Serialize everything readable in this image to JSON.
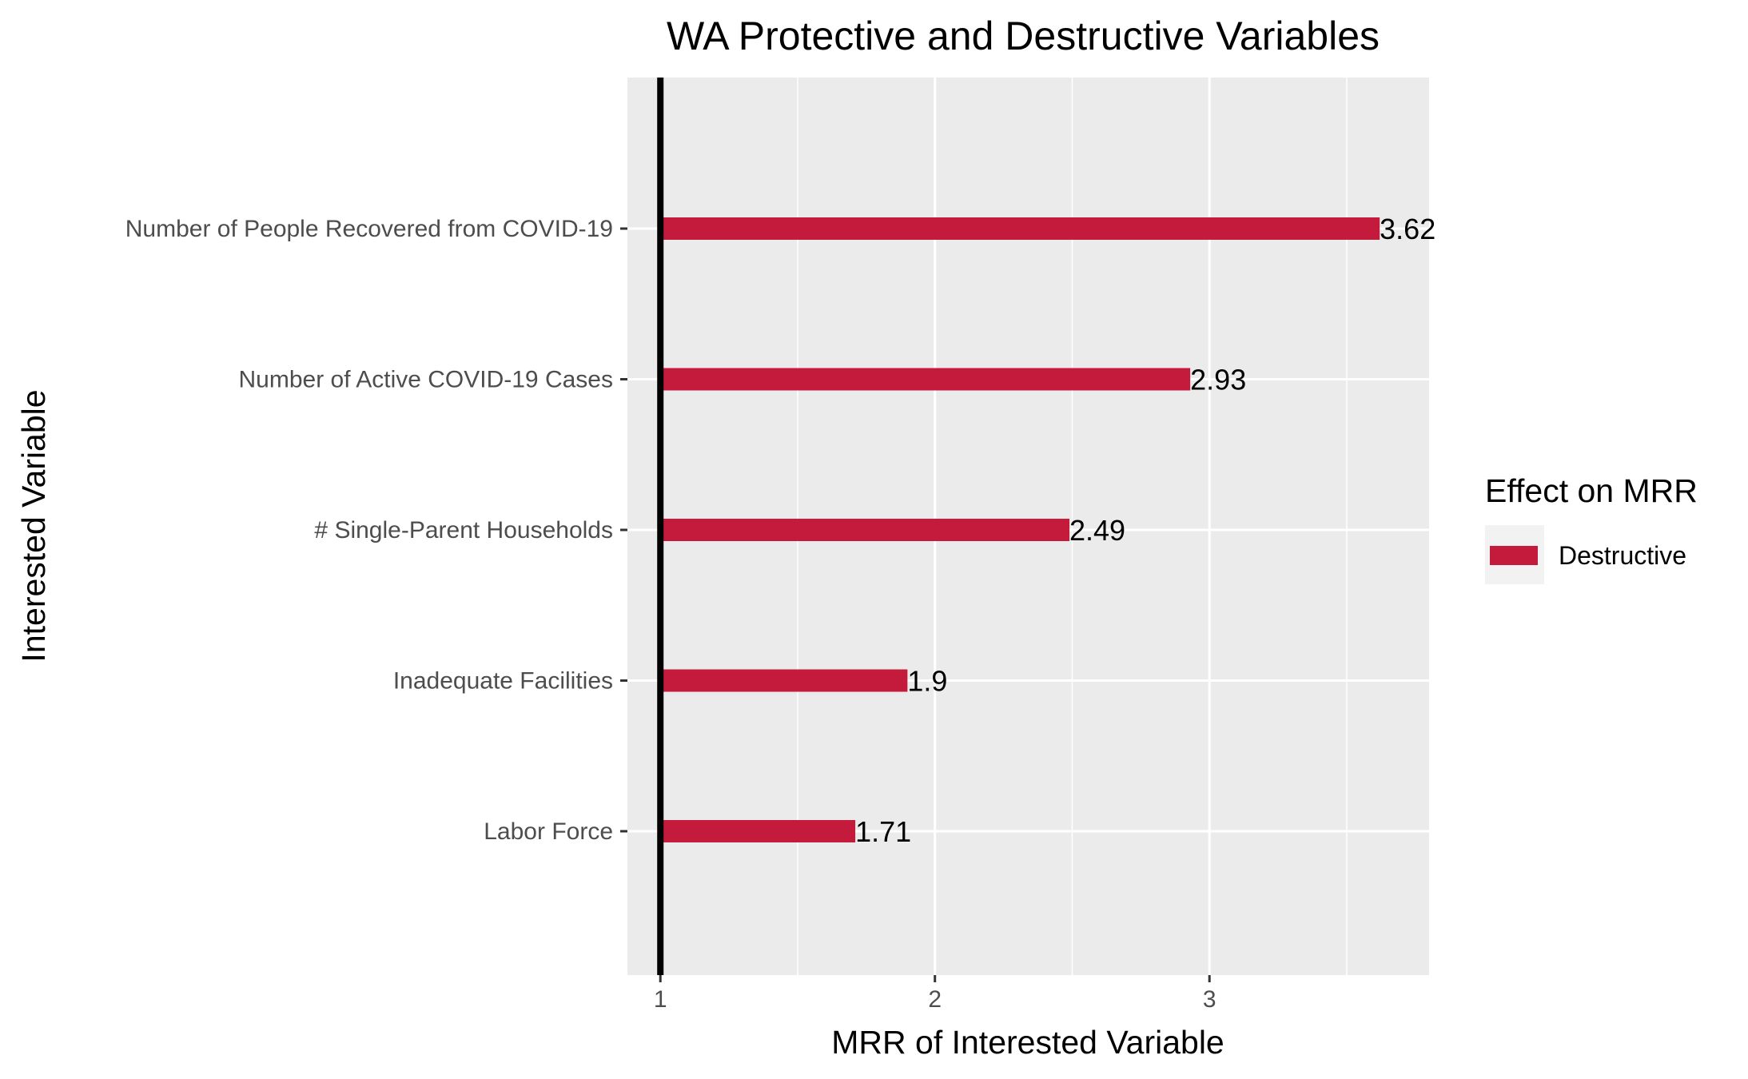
{
  "chart_data": {
    "type": "bar",
    "orientation": "horizontal",
    "title": "WA Protective and Destructive Variables",
    "xlabel": "MRR of Interested Variable",
    "ylabel": "Interested Variable",
    "categories": [
      "Number of People Recovered from COVID-19",
      "Number of Active COVID-19 Cases",
      "# Single-Parent Households",
      "Inadequate Facilities",
      "Labor Force"
    ],
    "series": [
      {
        "name": "Destructive",
        "values": [
          3.62,
          2.93,
          2.49,
          1.9,
          1.71
        ]
      }
    ],
    "data_labels": [
      "3.62",
      "2.93",
      "2.49",
      "1.9",
      "1.71"
    ],
    "baseline": 1,
    "xlim": [
      0.88,
      3.8
    ],
    "xticks": [
      1,
      2,
      3
    ],
    "xtick_labels": [
      "1",
      "2",
      "3"
    ],
    "legend": {
      "title": "Effect on MRR",
      "position": "right"
    },
    "grid": true,
    "colors": {
      "Destructive": "#c41a3b",
      "panel": "#ebebeb",
      "grid": "#ffffff",
      "baseline": "#000000"
    }
  }
}
